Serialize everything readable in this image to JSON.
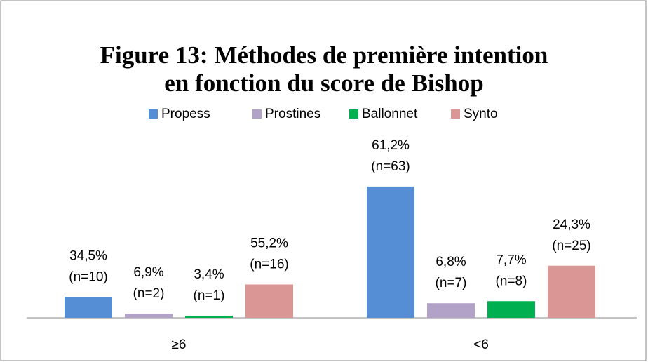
{
  "chart_data": {
    "type": "bar",
    "title": "Figure 13: Méthodes de première intention",
    "subtitle": "en fonction du score de Bishop",
    "categories": [
      "≥6",
      "<6"
    ],
    "series": [
      {
        "name": "Propess",
        "color": "#558ed5",
        "values": [
          10,
          63
        ],
        "value_labels": [
          "(n=10)",
          "(n=63)"
        ],
        "percents": [
          34.5,
          61.2
        ],
        "percent_labels": [
          "34,5%",
          "61,2%"
        ]
      },
      {
        "name": "Prostines",
        "color": "#b3a2c7",
        "values": [
          2,
          7
        ],
        "value_labels": [
          "(n=2)",
          "(n=7)"
        ],
        "percents": [
          6.9,
          6.8
        ],
        "percent_labels": [
          "6,9%",
          "6,8%"
        ]
      },
      {
        "name": "Ballonnet",
        "color": "#00b050",
        "values": [
          1,
          8
        ],
        "value_labels": [
          "(n=1)",
          "(n=8)"
        ],
        "percents": [
          3.4,
          7.7
        ],
        "percent_labels": [
          "3,4%",
          "7,7%"
        ]
      },
      {
        "name": "Synto",
        "color": "#d99694",
        "values": [
          16,
          25
        ],
        "value_labels": [
          "(n=16)",
          "(n=25)"
        ],
        "percents": [
          55.2,
          24.3
        ],
        "percent_labels": [
          "55,2%",
          "24,3%"
        ]
      }
    ],
    "legend": "top"
  }
}
